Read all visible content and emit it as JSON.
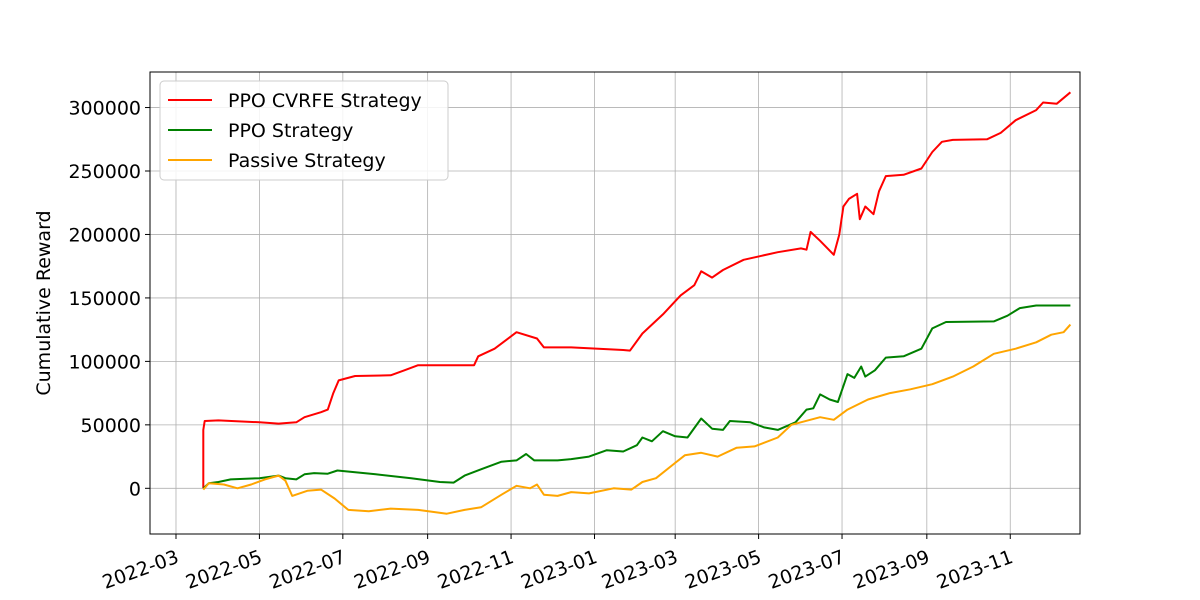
{
  "chart_data": {
    "type": "line",
    "title": "",
    "xlabel": "",
    "ylabel": "Cumulative Reward",
    "grid": true,
    "legend_position": "top-left",
    "xlim": [
      "2022-02-10",
      "2023-12-22"
    ],
    "ylim": [
      -36000,
      328000
    ],
    "x_ticks": [
      "2022-03-01",
      "2022-05-01",
      "2022-07-01",
      "2022-09-01",
      "2022-11-01",
      "2023-01-01",
      "2023-03-01",
      "2023-05-01",
      "2023-07-01",
      "2023-09-01",
      "2023-11-01"
    ],
    "x_tick_labels": [
      "2022-03",
      "2022-05",
      "2022-07",
      "2022-09",
      "2022-11",
      "2023-01",
      "2023-03",
      "2023-05",
      "2023-07",
      "2023-09",
      "2023-11"
    ],
    "y_ticks": [
      0,
      50000,
      100000,
      150000,
      200000,
      250000,
      300000
    ],
    "y_tick_labels": [
      "0",
      "50000",
      "100000",
      "150000",
      "200000",
      "250000",
      "300000"
    ],
    "series": [
      {
        "name": "PPO CVRFE Strategy",
        "color": "#ff0000",
        "points": [
          [
            "2022-03-21",
            0
          ],
          [
            "2022-03-21",
            46000
          ],
          [
            "2022-03-22",
            53000
          ],
          [
            "2022-04-01",
            53500
          ],
          [
            "2022-05-01",
            52000
          ],
          [
            "2022-05-15",
            51000
          ],
          [
            "2022-05-28",
            52000
          ],
          [
            "2022-06-03",
            56000
          ],
          [
            "2022-06-15",
            60000
          ],
          [
            "2022-06-20",
            62000
          ],
          [
            "2022-06-24",
            75000
          ],
          [
            "2022-06-28",
            85000
          ],
          [
            "2022-07-10",
            88500
          ],
          [
            "2022-08-05",
            89000
          ],
          [
            "2022-08-15",
            93000
          ],
          [
            "2022-08-25",
            97000
          ],
          [
            "2022-09-15",
            97000
          ],
          [
            "2022-10-05",
            97000
          ],
          [
            "2022-10-08",
            104000
          ],
          [
            "2022-10-20",
            110000
          ],
          [
            "2022-11-05",
            123000
          ],
          [
            "2022-11-20",
            118000
          ],
          [
            "2022-11-25",
            111000
          ],
          [
            "2022-12-15",
            111000
          ],
          [
            "2023-01-22",
            109000
          ],
          [
            "2023-01-27",
            108500
          ],
          [
            "2023-02-05",
            122000
          ],
          [
            "2023-02-20",
            137000
          ],
          [
            "2023-03-05",
            152000
          ],
          [
            "2023-03-15",
            160000
          ],
          [
            "2023-03-20",
            171000
          ],
          [
            "2023-03-28",
            166000
          ],
          [
            "2023-04-05",
            172000
          ],
          [
            "2023-04-20",
            180000
          ],
          [
            "2023-05-15",
            186000
          ],
          [
            "2023-06-01",
            189000
          ],
          [
            "2023-06-05",
            188000
          ],
          [
            "2023-06-08",
            202000
          ],
          [
            "2023-06-15",
            195000
          ],
          [
            "2023-06-25",
            184000
          ],
          [
            "2023-06-29",
            200000
          ],
          [
            "2023-07-02",
            222000
          ],
          [
            "2023-07-06",
            228000
          ],
          [
            "2023-07-12",
            232000
          ],
          [
            "2023-07-14",
            212000
          ],
          [
            "2023-07-18",
            222000
          ],
          [
            "2023-07-24",
            216000
          ],
          [
            "2023-07-28",
            234000
          ],
          [
            "2023-08-02",
            246000
          ],
          [
            "2023-08-15",
            247000
          ],
          [
            "2023-08-28",
            252000
          ],
          [
            "2023-09-05",
            265000
          ],
          [
            "2023-09-12",
            273000
          ],
          [
            "2023-09-20",
            274500
          ],
          [
            "2023-10-15",
            275000
          ],
          [
            "2023-10-25",
            280000
          ],
          [
            "2023-11-05",
            290000
          ],
          [
            "2023-11-20",
            298000
          ],
          [
            "2023-11-25",
            304000
          ],
          [
            "2023-12-05",
            303000
          ],
          [
            "2023-12-15",
            312000
          ]
        ]
      },
      {
        "name": "PPO Strategy",
        "color": "#008000",
        "points": [
          [
            "2022-03-21",
            0
          ],
          [
            "2022-03-25",
            4000
          ],
          [
            "2022-04-01",
            5000
          ],
          [
            "2022-04-10",
            7000
          ],
          [
            "2022-05-01",
            8000
          ],
          [
            "2022-05-15",
            10000
          ],
          [
            "2022-05-20",
            8000
          ],
          [
            "2022-05-28",
            7000
          ],
          [
            "2022-06-03",
            11000
          ],
          [
            "2022-06-10",
            12000
          ],
          [
            "2022-06-20",
            11500
          ],
          [
            "2022-06-27",
            14000
          ],
          [
            "2022-07-25",
            11000
          ],
          [
            "2022-08-20",
            8000
          ],
          [
            "2022-09-10",
            5000
          ],
          [
            "2022-09-20",
            4500
          ],
          [
            "2022-09-28",
            10000
          ],
          [
            "2022-10-10",
            15000
          ],
          [
            "2022-10-25",
            21000
          ],
          [
            "2022-11-05",
            22000
          ],
          [
            "2022-11-12",
            27000
          ],
          [
            "2022-11-18",
            22000
          ],
          [
            "2022-12-05",
            22000
          ],
          [
            "2022-12-15",
            23000
          ],
          [
            "2022-12-28",
            25000
          ],
          [
            "2023-01-10",
            30000
          ],
          [
            "2023-01-22",
            29000
          ],
          [
            "2023-02-01",
            34000
          ],
          [
            "2023-02-05",
            40000
          ],
          [
            "2023-02-12",
            37000
          ],
          [
            "2023-02-20",
            45000
          ],
          [
            "2023-03-01",
            41000
          ],
          [
            "2023-03-10",
            40000
          ],
          [
            "2023-03-20",
            55000
          ],
          [
            "2023-03-28",
            47000
          ],
          [
            "2023-04-05",
            46000
          ],
          [
            "2023-04-10",
            53000
          ],
          [
            "2023-04-25",
            52000
          ],
          [
            "2023-05-05",
            48000
          ],
          [
            "2023-05-15",
            46000
          ],
          [
            "2023-05-28",
            52000
          ],
          [
            "2023-06-05",
            62000
          ],
          [
            "2023-06-10",
            63000
          ],
          [
            "2023-06-15",
            74000
          ],
          [
            "2023-06-22",
            70000
          ],
          [
            "2023-06-28",
            68000
          ],
          [
            "2023-07-05",
            90000
          ],
          [
            "2023-07-10",
            87000
          ],
          [
            "2023-07-15",
            96000
          ],
          [
            "2023-07-18",
            88000
          ],
          [
            "2023-07-25",
            93000
          ],
          [
            "2023-08-02",
            103000
          ],
          [
            "2023-08-15",
            104000
          ],
          [
            "2023-08-28",
            110000
          ],
          [
            "2023-09-05",
            126000
          ],
          [
            "2023-09-15",
            131000
          ],
          [
            "2023-10-20",
            131500
          ],
          [
            "2023-10-30",
            136000
          ],
          [
            "2023-11-08",
            142000
          ],
          [
            "2023-11-20",
            144000
          ],
          [
            "2023-12-15",
            144000
          ]
        ]
      },
      {
        "name": "Passive Strategy",
        "color": "#ffa500",
        "points": [
          [
            "2022-03-21",
            -1000
          ],
          [
            "2022-03-25",
            4000
          ],
          [
            "2022-04-05",
            3000
          ],
          [
            "2022-04-15",
            0
          ],
          [
            "2022-04-25",
            3000
          ],
          [
            "2022-05-05",
            7000
          ],
          [
            "2022-05-15",
            10000
          ],
          [
            "2022-05-20",
            6000
          ],
          [
            "2022-05-25",
            -6000
          ],
          [
            "2022-06-05",
            -2000
          ],
          [
            "2022-06-15",
            -1000
          ],
          [
            "2022-06-25",
            -8000
          ],
          [
            "2022-07-05",
            -17000
          ],
          [
            "2022-07-20",
            -18000
          ],
          [
            "2022-08-05",
            -16000
          ],
          [
            "2022-08-25",
            -17000
          ],
          [
            "2022-09-15",
            -20000
          ],
          [
            "2022-09-28",
            -17000
          ],
          [
            "2022-10-10",
            -15000
          ],
          [
            "2022-10-25",
            -5000
          ],
          [
            "2022-11-05",
            2000
          ],
          [
            "2022-11-15",
            0
          ],
          [
            "2022-11-20",
            3000
          ],
          [
            "2022-11-25",
            -5000
          ],
          [
            "2022-12-05",
            -6000
          ],
          [
            "2022-12-15",
            -3000
          ],
          [
            "2022-12-28",
            -4000
          ],
          [
            "2023-01-15",
            0
          ],
          [
            "2023-01-28",
            -1000
          ],
          [
            "2023-02-05",
            5000
          ],
          [
            "2023-02-15",
            8000
          ],
          [
            "2023-03-01",
            20000
          ],
          [
            "2023-03-08",
            26000
          ],
          [
            "2023-03-20",
            28000
          ],
          [
            "2023-04-01",
            25000
          ],
          [
            "2023-04-15",
            32000
          ],
          [
            "2023-04-28",
            33000
          ],
          [
            "2023-05-15",
            40000
          ],
          [
            "2023-05-25",
            50000
          ],
          [
            "2023-06-15",
            56000
          ],
          [
            "2023-06-25",
            54000
          ],
          [
            "2023-07-05",
            62000
          ],
          [
            "2023-07-20",
            70000
          ],
          [
            "2023-08-05",
            75000
          ],
          [
            "2023-08-20",
            78000
          ],
          [
            "2023-09-05",
            82000
          ],
          [
            "2023-09-20",
            88000
          ],
          [
            "2023-10-05",
            96000
          ],
          [
            "2023-10-20",
            106000
          ],
          [
            "2023-11-05",
            110000
          ],
          [
            "2023-11-20",
            115000
          ],
          [
            "2023-12-01",
            121000
          ],
          [
            "2023-12-10",
            123000
          ],
          [
            "2023-12-15",
            129000
          ]
        ]
      }
    ]
  }
}
